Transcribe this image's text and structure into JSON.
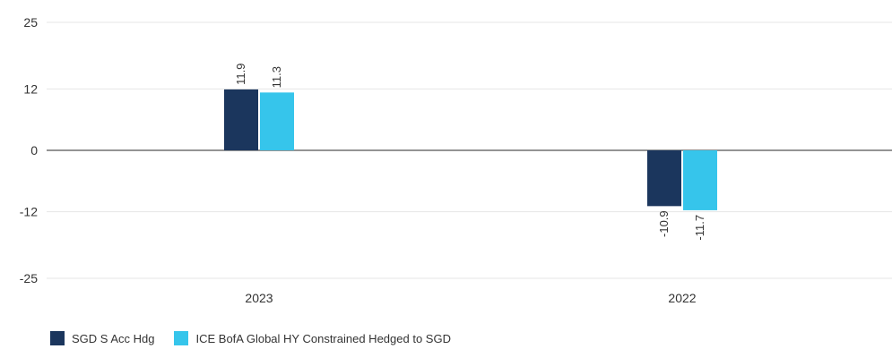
{
  "chart_data": {
    "type": "bar",
    "categories": [
      "2023",
      "2022"
    ],
    "series": [
      {
        "name": "SGD S Acc Hdg",
        "values": [
          11.9,
          -10.9
        ],
        "labels": [
          "11.9",
          "-10.9"
        ],
        "color": "#1b365d"
      },
      {
        "name": "ICE BofA Global HY Constrained Hedged to SGD",
        "values": [
          11.3,
          -11.7
        ],
        "labels": [
          "11.3",
          "-11.7"
        ],
        "color": "#36c5eb"
      }
    ],
    "y_ticks": [
      25,
      12,
      0,
      -12,
      -25
    ],
    "ylim": [
      -25,
      25
    ],
    "grid": true,
    "legend": "bottom-left",
    "title": "",
    "xlabel": "",
    "ylabel": ""
  }
}
